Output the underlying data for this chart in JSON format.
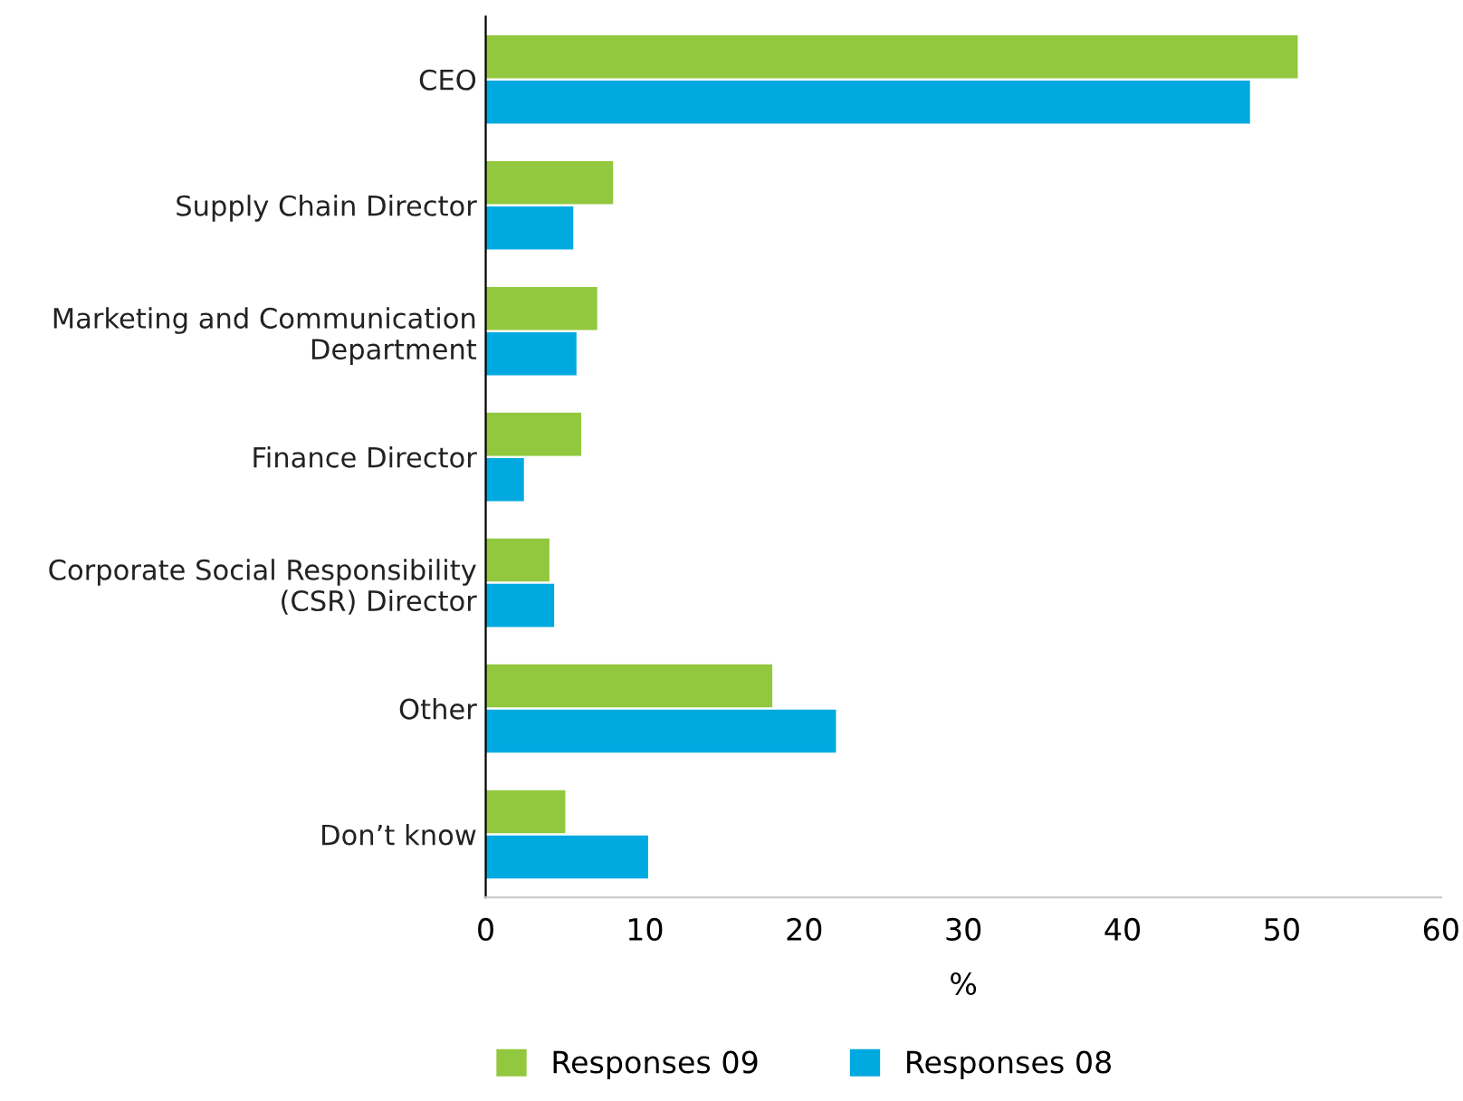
{
  "chart_data": {
    "type": "bar",
    "orientation": "horizontal",
    "xlabel": "%",
    "categories": [
      "CEO",
      "Supply Chain Director",
      "Marketing and Communication\nDepartment",
      "Finance Director",
      "Corporate Social Responsibility\n(CSR) Director",
      "Other",
      "Don’t know"
    ],
    "series": [
      {
        "name": "Responses 09",
        "color": "#92c83e",
        "values": [
          51,
          8,
          7,
          6,
          4,
          18,
          5
        ]
      },
      {
        "name": "Responses 08",
        "color": "#00a9e0",
        "values": [
          48,
          5.5,
          5.7,
          2.4,
          4.3,
          22,
          10.2
        ]
      }
    ],
    "xlim": [
      0,
      60
    ],
    "xticks": [
      0,
      10,
      20,
      30,
      40,
      50,
      60
    ],
    "grid": false,
    "legend": "bottom"
  }
}
